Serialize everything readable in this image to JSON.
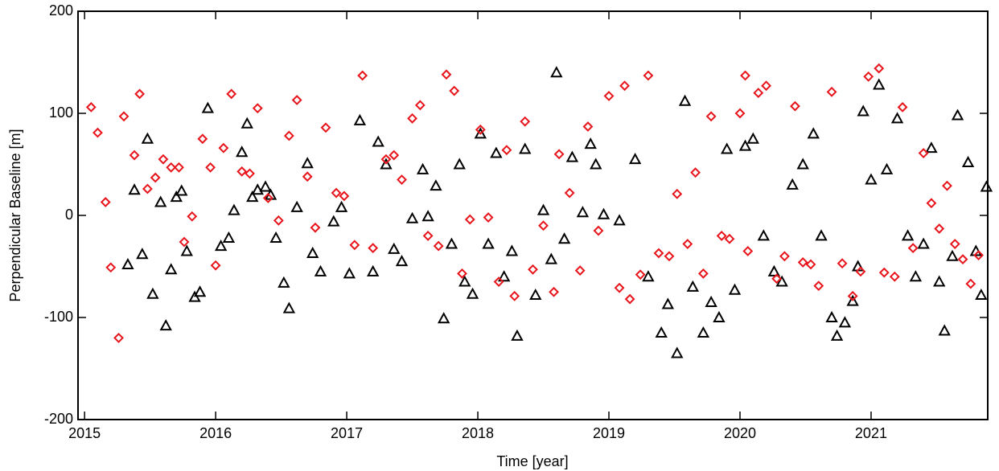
{
  "chart_data": {
    "type": "scatter",
    "x_label": "Time [year]",
    "y_label": "Perpendicular Baseline [m]",
    "xlim": [
      2014.95,
      2021.89
    ],
    "ylim": [
      -200,
      200
    ],
    "xticks": [
      2015,
      2016,
      2017,
      2018,
      2019,
      2020,
      2021
    ],
    "yticks": [
      -200,
      -100,
      0,
      100,
      200
    ],
    "series": [
      {
        "color": "#000000",
        "marker": "triangle",
        "x": [
          2015.33,
          2015.38,
          2015.44,
          2015.48,
          2015.52,
          2015.58,
          2015.62,
          2015.66,
          2015.7,
          2015.74,
          2015.78,
          2015.84,
          2015.88,
          2015.94,
          2016.04,
          2016.1,
          2016.14,
          2016.2,
          2016.24,
          2016.28,
          2016.32,
          2016.38,
          2016.42,
          2016.46,
          2016.52,
          2016.56,
          2016.62,
          2016.7,
          2016.74,
          2016.8,
          2016.9,
          2016.96,
          2017.02,
          2017.1,
          2017.2,
          2017.24,
          2017.3,
          2017.36,
          2017.42,
          2017.5,
          2017.58,
          2017.62,
          2017.68,
          2017.74,
          2017.8,
          2017.86,
          2017.9,
          2017.96,
          2018.02,
          2018.08,
          2018.14,
          2018.2,
          2018.26,
          2018.3,
          2018.36,
          2018.44,
          2018.5,
          2018.56,
          2018.6,
          2018.66,
          2018.72,
          2018.8,
          2018.86,
          2018.9,
          2018.96,
          2019.08,
          2019.2,
          2019.3,
          2019.4,
          2019.45,
          2019.52,
          2019.58,
          2019.64,
          2019.72,
          2019.78,
          2019.84,
          2019.9,
          2019.96,
          2020.04,
          2020.1,
          2020.18,
          2020.26,
          2020.32,
          2020.4,
          2020.48,
          2020.56,
          2020.62,
          2020.7,
          2020.74,
          2020.8,
          2020.86,
          2020.9,
          2020.94,
          2021.0,
          2021.06,
          2021.12,
          2021.2,
          2021.28,
          2021.34,
          2021.4,
          2021.46,
          2021.52,
          2021.56,
          2021.62,
          2021.66,
          2021.74,
          2021.8,
          2021.84,
          2021.88
        ],
        "values": [
          -48,
          25,
          -38,
          75,
          -77,
          13,
          -108,
          -53,
          18,
          24,
          -35,
          -80,
          -75,
          105,
          -30,
          -22,
          5,
          62,
          90,
          18,
          25,
          28,
          20,
          -22,
          -66,
          -91,
          8,
          51,
          -37,
          -55,
          -6,
          8,
          -57,
          93,
          -55,
          72,
          50,
          -33,
          -45,
          -3,
          45,
          -1,
          29,
          -101,
          -28,
          50,
          -65,
          -77,
          80,
          -28,
          61,
          -60,
          -35,
          -118,
          65,
          -78,
          5,
          -43,
          140,
          -23,
          57,
          3,
          70,
          50,
          1,
          -5,
          55,
          -60,
          -115,
          -87,
          -135,
          112,
          -70,
          -115,
          -85,
          -100,
          65,
          -73,
          68,
          75,
          -20,
          -55,
          -65,
          30,
          50,
          80,
          -20,
          -100,
          -118,
          -105,
          -84,
          -50,
          102,
          35,
          128,
          45,
          95,
          -20,
          -60,
          -28,
          66,
          -65,
          -113,
          -40,
          98,
          52,
          -35,
          -78,
          28
        ]
      },
      {
        "color": "#e8141b",
        "marker": "diamond",
        "x": [
          2015.05,
          2015.1,
          2015.16,
          2015.2,
          2015.26,
          2015.3,
          2015.38,
          2015.42,
          2015.48,
          2015.54,
          2015.6,
          2015.66,
          2015.72,
          2015.76,
          2015.82,
          2015.9,
          2015.96,
          2016.0,
          2016.06,
          2016.12,
          2016.2,
          2016.26,
          2016.32,
          2016.4,
          2016.48,
          2016.56,
          2016.62,
          2016.7,
          2016.76,
          2016.84,
          2016.92,
          2016.98,
          2017.06,
          2017.12,
          2017.2,
          2017.3,
          2017.36,
          2017.42,
          2017.5,
          2017.56,
          2017.62,
          2017.7,
          2017.76,
          2017.82,
          2017.88,
          2017.94,
          2018.02,
          2018.08,
          2018.16,
          2018.22,
          2018.28,
          2018.36,
          2018.42,
          2018.5,
          2018.58,
          2018.62,
          2018.7,
          2018.78,
          2018.84,
          2018.92,
          2019.0,
          2019.08,
          2019.12,
          2019.16,
          2019.24,
          2019.3,
          2019.38,
          2019.46,
          2019.52,
          2019.6,
          2019.66,
          2019.72,
          2019.78,
          2019.86,
          2019.92,
          2020.0,
          2020.04,
          2020.06,
          2020.14,
          2020.2,
          2020.28,
          2020.34,
          2020.42,
          2020.48,
          2020.54,
          2020.6,
          2020.7,
          2020.78,
          2020.86,
          2020.92,
          2020.98,
          2021.06,
          2021.1,
          2021.18,
          2021.24,
          2021.32,
          2021.4,
          2021.46,
          2021.52,
          2021.58,
          2021.64,
          2021.7,
          2021.76,
          2021.82
        ],
        "values": [
          106,
          81,
          13,
          -51,
          -120,
          97,
          59,
          119,
          26,
          37,
          55,
          47,
          47,
          -26,
          -1,
          75,
          47,
          -49,
          66,
          119,
          43,
          41,
          105,
          17,
          -5,
          78,
          113,
          38,
          -12,
          86,
          22,
          19,
          -29,
          137,
          -32,
          55,
          59,
          35,
          95,
          108,
          -20,
          -30,
          138,
          122,
          -57,
          -4,
          84,
          -2,
          -65,
          64,
          -79,
          92,
          -53,
          -10,
          -75,
          60,
          22,
          -54,
          87,
          -15,
          117,
          -71,
          127,
          -82,
          -58,
          137,
          -37,
          -40,
          21,
          -28,
          42,
          -57,
          97,
          -20,
          -23,
          100,
          137,
          -35,
          120,
          127,
          -62,
          -40,
          107,
          -46,
          -48,
          -69,
          121,
          -47,
          -79,
          -55,
          136,
          144,
          -56,
          -60,
          106,
          -32,
          61,
          12,
          -13,
          29,
          -28,
          -43,
          -67,
          -39
        ]
      }
    ]
  }
}
